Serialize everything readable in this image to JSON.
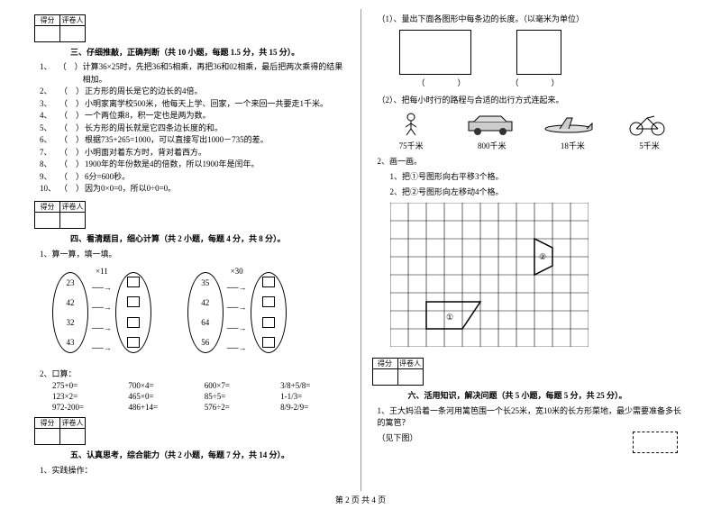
{
  "scorebox": {
    "h1": "得分",
    "h2": "评卷人"
  },
  "sec3": {
    "title": "三、仔细推敲，正确判断（共 10 小题，每题 1.5 分，共 15 分）。",
    "items": [
      "计算36×25时，先把36和5相乘，再把36和02相乘，最后把两次乘得的结果相加。",
      "正方形的周长是它的边长的4倍。",
      "小明家离学校500米，他每天上学、回家，一个来回一共要走1千米。",
      "一个两位乘8，积一定也是两为数。",
      "长方形的周长就是它四条边长度的和。",
      "根据735+265=1000，可以直接写出1000－735的差。",
      "小明面对着东方时，背对着西方。",
      "1900年的年份数是4的倍数，所以1900年是闰年。",
      "6分=600秒。",
      "因为0×0=0，所以0÷0=0。"
    ]
  },
  "sec4": {
    "title": "四、看清题目，细心计算（共 2 小题，每题 4 分，共 8 分）。",
    "q1": "算一算，填一填。",
    "mult1": "×11",
    "mult2": "×30",
    "oval1": [
      "23",
      "42",
      "32",
      "43"
    ],
    "oval2": [
      "35",
      "42",
      "64",
      "56"
    ],
    "q2": "口算：",
    "calc": [
      "275+0=",
      "700×4=",
      "600×7=",
      "3/8+5/8=",
      "123×2=",
      "465×0=",
      "85÷5=",
      "1-1/3=",
      "972-200=",
      "486+14=",
      "576÷2=",
      "8/9-2/9="
    ]
  },
  "sec5": {
    "title": "五、认真思考，综合能力（共 2 小题，每题 7 分，共 14 分）。",
    "q1": "实践操作："
  },
  "right": {
    "r1": "（1）、量出下面各图形中每条边的长度。（以毫米为单位）",
    "paren": "（　　　　）",
    "r2": "（2）、把每小时行的路程与合适的出行方式连起来。",
    "km": [
      "75千米",
      "800千米",
      "18千米",
      "5千米"
    ],
    "r3": "画一画。",
    "r3a": "把①号图形向右平移3个格。",
    "r3b": "把②号图形向左移动4个格。"
  },
  "sec6": {
    "title": "六、活用知识，解决问题（共 5 小题，每题 5 分，共 25 分）。",
    "q1a": "王大妈沿着一条河用篱笆围一个长25米，宽10米的长方形菜地，最少需要准备多长的篱笆？",
    "q1b": "（见下图）"
  },
  "nums": [
    "1、",
    "2、",
    "3、",
    "4、",
    "5、",
    "6、",
    "7、",
    "8、",
    "9、",
    "10、"
  ],
  "q2num": "2、",
  "q1num": "1、",
  "footer": "第 2 页 共 4 页"
}
